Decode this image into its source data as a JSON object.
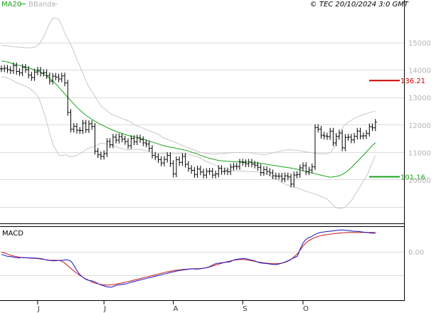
{
  "header": {
    "legend_ma_label": "MA20",
    "legend_bb_label": "BBands",
    "copyright": "© TEC 20/10/2024 3:0 GMT"
  },
  "colors": {
    "price": "#000000",
    "ma": "#19a319",
    "bands": "#c8c8c8",
    "grid": "#dcdcdc",
    "resistance": "#cc0000",
    "support": "#19a319",
    "macd_line": "#1414c8",
    "signal_line": "#cc1414"
  },
  "chart_data": [
    {
      "type": "line",
      "title": "",
      "y_ticks": [
        10000,
        11000,
        12000,
        13000,
        14000,
        15000
      ],
      "y_tick_labels": [
        "10000",
        "11000",
        "12000",
        "13000",
        "14000",
        "15000"
      ],
      "ylim": [
        8800,
        16200
      ],
      "months": [
        {
          "label": "J",
          "bar": 12
        },
        {
          "label": "J",
          "bar": 34
        },
        {
          "label": "A",
          "bar": 57
        },
        {
          "label": "S",
          "bar": 80
        },
        {
          "label": "O",
          "bar": 100
        }
      ],
      "levels": [
        {
          "name": "resistance",
          "value": 13621,
          "label": "136.21"
        },
        {
          "name": "support",
          "value": 10116,
          "label": "101.16"
        }
      ],
      "series": [
        {
          "name": "MA20",
          "values": [
            14330,
            14320,
            14290,
            14250,
            14210,
            14180,
            14150,
            14120,
            14080,
            14040,
            14000,
            13950,
            13880,
            13800,
            13710,
            13600,
            13480,
            13340,
            13200,
            13060,
            12920,
            12780,
            12650,
            12530,
            12420,
            12320,
            12240,
            12160,
            12090,
            12020,
            11960,
            11900,
            11840,
            11790,
            11740,
            11700,
            11660,
            11620,
            11590,
            11560,
            11530,
            11500,
            11460,
            11420,
            11380,
            11340,
            11300,
            11260,
            11230,
            11200,
            11180,
            11150,
            11130,
            11100,
            11070,
            11030,
            10990,
            10950,
            10900,
            10850,
            10810,
            10780,
            10750,
            10720,
            10700,
            10690,
            10680,
            10670,
            10660,
            10660,
            10660,
            10660,
            10650,
            10640,
            10630,
            10610,
            10600,
            10580,
            10560,
            10540,
            10520,
            10500,
            10480,
            10460,
            10440,
            10420,
            10400,
            10370,
            10330,
            10300,
            10270,
            10240,
            10210,
            10180,
            10150,
            10120,
            10100,
            10120,
            10140,
            10180,
            10250,
            10340,
            10450,
            10580,
            10710,
            10840,
            10970,
            11110,
            11240,
            11360
          ]
        },
        {
          "name": "upper",
          "values": [
            14900,
            14890,
            14880,
            14860,
            14850,
            14840,
            14830,
            14820,
            14810,
            14820,
            14850,
            14950,
            15150,
            15400,
            15700,
            15900,
            15900,
            15800,
            15500,
            15200,
            15000,
            14700,
            14400,
            14100,
            13800,
            13500,
            13300,
            13100,
            12900,
            12700,
            12600,
            12500,
            12400,
            12350,
            12300,
            12250,
            12200,
            12150,
            12080,
            12000,
            11950,
            11900,
            11850,
            11800,
            11750,
            11700,
            11650,
            11550,
            11500,
            11450,
            11400,
            11350,
            11300,
            11250,
            11200,
            11150,
            11100,
            11050,
            11000,
            10980,
            10960,
            10950,
            10940,
            10950,
            10960,
            10970,
            10980,
            10990,
            11000,
            11000,
            11000,
            11000,
            11000,
            10980,
            10960,
            10940,
            10930,
            10930,
            10950,
            10980,
            11010,
            11040,
            11070,
            11090,
            11100,
            11090,
            11080,
            11060,
            11040,
            11020,
            11000,
            10980,
            10960,
            10950,
            10950,
            10950,
            11010,
            11200,
            11500,
            11800,
            12000,
            12100,
            12180,
            12250,
            12310,
            12360,
            12400,
            12440,
            12480,
            12510
          ]
        },
        {
          "name": "lower",
          "values": [
            13760,
            13750,
            13700,
            13640,
            13570,
            13520,
            13470,
            13420,
            13350,
            13260,
            13150,
            12950,
            12610,
            12200,
            11720,
            11300,
            11060,
            10880,
            10900,
            10920,
            10840,
            10860,
            10900,
            10960,
            11040,
            11140,
            11180,
            11220,
            11280,
            11340,
            11320,
            11300,
            11280,
            11230,
            11180,
            11150,
            11120,
            11090,
            11100,
            11120,
            11110,
            11100,
            11070,
            11040,
            11010,
            10980,
            10950,
            10970,
            10960,
            10950,
            10960,
            10950,
            10960,
            10950,
            10940,
            10910,
            10880,
            10850,
            10800,
            10720,
            10660,
            10610,
            10560,
            10490,
            10440,
            10410,
            10380,
            10350,
            10320,
            10320,
            10320,
            10320,
            10300,
            10300,
            10300,
            10280,
            10270,
            10230,
            10170,
            10100,
            10030,
            9960,
            9890,
            9830,
            9780,
            9750,
            9720,
            9680,
            9620,
            9580,
            9540,
            9500,
            9460,
            9410,
            9350,
            9290,
            9190,
            9040,
            8980,
            8960,
            9000,
            9100,
            9250,
            9450,
            9650,
            9850,
            10050,
            10300,
            10600,
            10900
          ]
        },
        {
          "name": "close",
          "values": [
            14050,
            14070,
            14020,
            13980,
            14160,
            13950,
            13900,
            14100,
            14020,
            13820,
            13730,
            13930,
            14000,
            13890,
            13910,
            13800,
            13600,
            13780,
            13750,
            13680,
            13790,
            13530,
            12460,
            11850,
            11950,
            11810,
            11800,
            12070,
            11830,
            12050,
            11950,
            11050,
            10920,
            10860,
            10960,
            11400,
            11280,
            11560,
            11450,
            11580,
            11490,
            11400,
            11250,
            11510,
            11390,
            11530,
            11470,
            11350,
            11310,
            11150,
            10900,
            10840,
            10740,
            10620,
            10750,
            10890,
            10600,
            10220,
            10740,
            10640,
            10860,
            10570,
            10420,
            10350,
            10200,
            10400,
            10290,
            10180,
            10310,
            10320,
            10180,
            10220,
            10420,
            10310,
            10330,
            10300,
            10470,
            10500,
            10490,
            10650,
            10630,
            10590,
            10650,
            10580,
            10540,
            10460,
            10270,
            10380,
            10310,
            10260,
            10150,
            10140,
            10140,
            10040,
            10150,
            10110,
            9850,
            10180,
            10200,
            10440,
            10520,
            10300,
            10360,
            10480,
            11910,
            11850,
            11630,
            11600,
            11580,
            11780,
            11350,
            11590,
            11710,
            11170,
            11550,
            11560,
            11460,
            11590,
            11780,
            11600,
            11610,
            11700,
            11940,
            11900,
            12100
          ]
        }
      ]
    },
    {
      "type": "line",
      "title": "MACD",
      "y_ticks": [
        0
      ],
      "y_tick_labels": [
        "0.00"
      ],
      "ylim": [
        -1300,
        800
      ],
      "series": [
        {
          "name": "MACD",
          "values": [
            -80,
            -100,
            -130,
            -140,
            -150,
            -170,
            -180,
            -175,
            -170,
            -175,
            -180,
            -185,
            -185,
            -190,
            -200,
            -210,
            -230,
            -250,
            -260,
            -270,
            -270,
            -260,
            -260,
            -250,
            -240,
            -250,
            -290,
            -420,
            -560,
            -670,
            -750,
            -810,
            -850,
            -870,
            -880,
            -920,
            -960,
            -1000,
            -1020,
            -1050,
            -1060,
            -1060,
            -1030,
            -1000,
            -990,
            -980,
            -970,
            -950,
            -920,
            -900,
            -880,
            -860,
            -840,
            -820,
            -800,
            -780,
            -760,
            -740,
            -720,
            -700,
            -680,
            -660,
            -640,
            -620,
            -600,
            -580,
            -565,
            -550,
            -540,
            -530,
            -520,
            -510,
            -520,
            -520,
            -510,
            -500,
            -480,
            -460,
            -420,
            -380,
            -350,
            -340,
            -330,
            -320,
            -310,
            -300,
            -260,
            -230,
            -220,
            -210,
            -200,
            -210,
            -230,
            -250,
            -270,
            -300,
            -330,
            -340,
            -350,
            -360,
            -370,
            -380,
            -385,
            -370,
            -350,
            -320,
            -290,
            -250,
            -210,
            -170,
            -130,
            80,
            250,
            360,
            420,
            450,
            500,
            540,
            570,
            590,
            600,
            610,
            620,
            630,
            640,
            650,
            660,
            660,
            650,
            640,
            630,
            620,
            620,
            610,
            600,
            590,
            580,
            570,
            560,
            560
          ]
        },
        {
          "name": "Signal",
          "values": [
            -10,
            -30,
            -60,
            -90,
            -115,
            -135,
            -150,
            -165,
            -175,
            -180,
            -185,
            -190,
            -195,
            -200,
            -210,
            -220,
            -230,
            -240,
            -250,
            -255,
            -255,
            -255,
            -265,
            -295,
            -360,
            -430,
            -500,
            -570,
            -630,
            -690,
            -740,
            -790,
            -830,
            -870,
            -910,
            -940,
            -960,
            -980,
            -990,
            -1000,
            -1000,
            -995,
            -985,
            -970,
            -955,
            -940,
            -925,
            -905,
            -885,
            -865,
            -845,
            -825,
            -805,
            -785,
            -765,
            -745,
            -725,
            -705,
            -685,
            -665,
            -645,
            -625,
            -605,
            -590,
            -575,
            -560,
            -550,
            -540,
            -532,
            -525,
            -518,
            -512,
            -510,
            -508,
            -505,
            -500,
            -490,
            -475,
            -455,
            -430,
            -405,
            -380,
            -355,
            -330,
            -310,
            -290,
            -270,
            -250,
            -240,
            -230,
            -230,
            -235,
            -245,
            -260,
            -275,
            -290,
            -305,
            -320,
            -330,
            -340,
            -350,
            -355,
            -360,
            -360,
            -352,
            -340,
            -320,
            -290,
            -250,
            -190,
            -120,
            -40,
            70,
            190,
            270,
            330,
            380,
            420,
            450,
            475,
            495,
            510,
            520,
            530,
            540,
            550,
            560,
            570,
            575,
            580,
            585,
            585,
            585,
            585,
            585,
            585,
            585,
            585,
            585,
            585,
            585
          ]
        }
      ]
    }
  ]
}
